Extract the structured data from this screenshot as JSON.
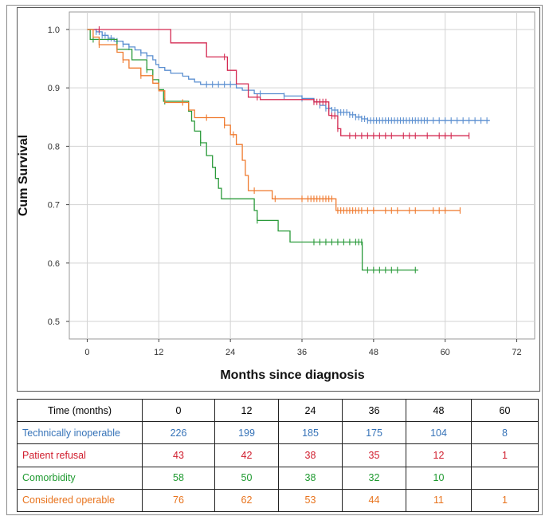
{
  "chart_data": {
    "type": "line",
    "subtype": "kaplan-meier",
    "title": "",
    "xlabel": "Months since diagnosis",
    "ylabel": "Cum Survival",
    "xlim": [
      -3,
      75
    ],
    "ylim": [
      0.47,
      1.03
    ],
    "xticks": [
      0,
      12,
      24,
      36,
      48,
      60,
      72
    ],
    "yticks": [
      0.5,
      0.6,
      0.7,
      0.8,
      0.9,
      1.0
    ],
    "ytick_labels": [
      "0.5",
      "0.6",
      "0.7",
      "0.8",
      "0.9",
      "1.0"
    ],
    "grid": true,
    "series": [
      {
        "name": "Technically inoperable",
        "color": "#5b8fd0",
        "steps": [
          [
            0,
            1.0
          ],
          [
            1.5,
            0.996
          ],
          [
            2.5,
            0.99
          ],
          [
            3.5,
            0.985
          ],
          [
            4.5,
            0.98
          ],
          [
            6,
            0.975
          ],
          [
            7,
            0.97
          ],
          [
            8,
            0.965
          ],
          [
            9,
            0.96
          ],
          [
            10,
            0.955
          ],
          [
            11,
            0.948
          ],
          [
            11.5,
            0.94
          ],
          [
            12,
            0.935
          ],
          [
            13,
            0.93
          ],
          [
            14,
            0.925
          ],
          [
            16,
            0.92
          ],
          [
            17,
            0.915
          ],
          [
            18,
            0.91
          ],
          [
            19,
            0.906
          ],
          [
            25,
            0.9
          ],
          [
            26,
            0.896
          ],
          [
            28,
            0.89
          ],
          [
            33,
            0.886
          ],
          [
            36,
            0.882
          ],
          [
            38,
            0.876
          ],
          [
            39,
            0.87
          ],
          [
            40,
            0.865
          ],
          [
            41,
            0.862
          ],
          [
            42,
            0.858
          ],
          [
            44,
            0.854
          ],
          [
            45,
            0.85
          ],
          [
            46,
            0.847
          ],
          [
            47,
            0.844
          ],
          [
            67.5,
            0.844
          ]
        ],
        "censor_x": [
          1.5,
          2,
          2.5,
          3,
          3.5,
          4,
          5,
          6,
          7,
          9,
          10,
          20,
          21,
          22,
          23,
          24,
          29,
          33,
          36,
          39,
          40,
          40.5,
          41,
          41.5,
          42,
          42.5,
          43,
          43.5,
          44,
          44.5,
          45,
          45.5,
          46,
          46.5,
          47,
          47.5,
          48,
          48.5,
          49,
          49.5,
          50,
          50.5,
          51,
          51.5,
          52,
          52.5,
          53,
          53.5,
          54,
          54.5,
          55,
          55.5,
          56,
          56.5,
          57,
          58,
          59,
          60,
          61,
          62,
          63,
          64,
          65,
          66,
          67
        ]
      },
      {
        "name": "Patient refusal",
        "color": "#d42a52",
        "steps": [
          [
            0,
            1.0
          ],
          [
            14,
            0.977
          ],
          [
            20,
            0.953
          ],
          [
            23.5,
            0.93
          ],
          [
            25,
            0.907
          ],
          [
            27,
            0.884
          ],
          [
            29,
            0.88
          ],
          [
            38,
            0.876
          ],
          [
            40.5,
            0.853
          ],
          [
            41,
            0.852
          ],
          [
            42,
            0.83
          ],
          [
            42.5,
            0.818
          ],
          [
            64,
            0.818
          ]
        ],
        "censor_x": [
          2,
          23,
          28.5,
          38,
          38.5,
          39,
          39.5,
          40,
          41,
          41.5,
          42,
          44,
          45,
          46,
          47,
          48,
          49,
          50,
          51,
          53,
          54,
          55,
          57,
          59,
          60,
          61,
          64
        ]
      },
      {
        "name": "Comorbidity",
        "color": "#2a9a3a",
        "steps": [
          [
            0,
            1.0
          ],
          [
            0.5,
            0.983
          ],
          [
            5,
            0.966
          ],
          [
            7.5,
            0.948
          ],
          [
            10,
            0.931
          ],
          [
            11,
            0.914
          ],
          [
            12,
            0.897
          ],
          [
            12.8,
            0.877
          ],
          [
            17,
            0.86
          ],
          [
            17.5,
            0.843
          ],
          [
            18,
            0.826
          ],
          [
            19,
            0.806
          ],
          [
            20,
            0.784
          ],
          [
            21,
            0.764
          ],
          [
            21.5,
            0.745
          ],
          [
            22,
            0.728
          ],
          [
            22.5,
            0.71
          ],
          [
            28,
            0.69
          ],
          [
            28.5,
            0.673
          ],
          [
            32,
            0.655
          ],
          [
            34,
            0.636
          ],
          [
            46,
            0.636
          ],
          [
            46.1,
            0.588
          ],
          [
            55.5,
            0.588
          ]
        ],
        "censor_x": [
          1,
          10,
          13,
          19,
          28.5,
          38,
          39,
          40,
          41,
          42,
          43,
          44,
          45,
          45.5,
          46,
          47,
          48,
          49,
          50,
          51,
          52,
          55
        ]
      },
      {
        "name": "Considered operable",
        "color": "#ef7a2e",
        "steps": [
          [
            0,
            1.0
          ],
          [
            1,
            0.987
          ],
          [
            2,
            0.974
          ],
          [
            5,
            0.961
          ],
          [
            6,
            0.948
          ],
          [
            7,
            0.934
          ],
          [
            9,
            0.921
          ],
          [
            11,
            0.908
          ],
          [
            12,
            0.895
          ],
          [
            13,
            0.875
          ],
          [
            17,
            0.862
          ],
          [
            18,
            0.849
          ],
          [
            23,
            0.836
          ],
          [
            24,
            0.82
          ],
          [
            25,
            0.803
          ],
          [
            26,
            0.776
          ],
          [
            26.5,
            0.75
          ],
          [
            27,
            0.724
          ],
          [
            31,
            0.71
          ],
          [
            41.5,
            0.71
          ],
          [
            41.7,
            0.69
          ],
          [
            62.5,
            0.69
          ]
        ],
        "censor_x": [
          2,
          6,
          9,
          16,
          20,
          23,
          24.5,
          28,
          31.5,
          36,
          37,
          37.5,
          38,
          38.5,
          39,
          39.5,
          40,
          40.5,
          41,
          42,
          42.5,
          43,
          43.5,
          44,
          44.5,
          45,
          45.5,
          46,
          47,
          48,
          50,
          51,
          52,
          54,
          55,
          58,
          59,
          60,
          62.5
        ]
      }
    ]
  },
  "risk_table": {
    "header": [
      "Time (months)",
      "0",
      "12",
      "24",
      "36",
      "48",
      "60"
    ],
    "rows": [
      {
        "label": "Technically inoperable",
        "values": [
          "226",
          "199",
          "185",
          "175",
          "104",
          "8"
        ],
        "color": "#3673b8"
      },
      {
        "label": "Patient refusal",
        "values": [
          "43",
          "42",
          "38",
          "35",
          "12",
          "1"
        ],
        "color": "#d01c2c"
      },
      {
        "label": "Comorbidity",
        "values": [
          "58",
          "50",
          "38",
          "32",
          "10",
          ""
        ],
        "color": "#1f9a30"
      },
      {
        "label": "Considered operable",
        "values": [
          "76",
          "62",
          "53",
          "44",
          "11",
          "1"
        ],
        "color": "#e8741e"
      }
    ]
  }
}
